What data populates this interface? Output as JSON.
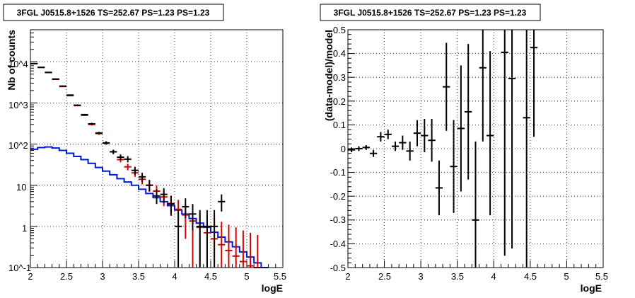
{
  "chart_data": [
    {
      "type": "histogram",
      "title": "3FGL J0515.8+1526 TS=252.67 PS=1.23 PS=1.23",
      "xlabel": "logE",
      "ylabel": "Nb of counts",
      "xlim": [
        2,
        5.5
      ],
      "ylim": [
        0.1,
        60000
      ],
      "yscale": "log",
      "grid": true,
      "x_ticks": [
        "2",
        "2.5",
        "3",
        "3.5",
        "4",
        "4.5",
        "5",
        "5.5"
      ],
      "y_ticks": [
        "10^-1",
        "1",
        "10",
        "10^2",
        "10^3",
        "10^4"
      ],
      "colors": {
        "data": "#000000",
        "model": "#d40000",
        "source": "#0019d4"
      },
      "series": [
        {
          "role": "data",
          "x": [
            2.05,
            2.15,
            2.25,
            2.35,
            2.45,
            2.55,
            2.65,
            2.75,
            2.85,
            2.95,
            3.05,
            3.15,
            3.25,
            3.35,
            3.45,
            3.55,
            3.65,
            3.75,
            3.85,
            3.95,
            4.05,
            4.15,
            4.25,
            4.35,
            4.45,
            4.55,
            4.65
          ],
          "y": [
            9000,
            7300,
            5500,
            3800,
            2560,
            1550,
            880,
            520,
            310,
            186,
            107,
            65,
            48,
            43,
            23,
            16,
            10,
            5.5,
            6,
            3.5,
            1,
            3,
            2,
            1,
            1,
            1,
            4
          ],
          "y_low": [
            8900,
            7200,
            5420,
            3740,
            2510,
            1510,
            850,
            500,
            290,
            175,
            98,
            57,
            41,
            36,
            18,
            12,
            7,
            3.5,
            3.7,
            1.9,
            0.1,
            1.6,
            0.8,
            0.1,
            0.1,
            0.1,
            2.3
          ],
          "y_high": [
            9100,
            7400,
            5580,
            3860,
            2610,
            1590,
            910,
            540,
            330,
            198,
            117,
            73,
            56,
            51,
            28,
            20,
            13.5,
            8,
            8.5,
            5.5,
            2.5,
            4.8,
            3.5,
            2.5,
            2.5,
            2.5,
            6
          ]
        },
        {
          "role": "model",
          "x": [
            2.05,
            2.15,
            2.25,
            2.35,
            2.45,
            2.55,
            2.65,
            2.75,
            2.85,
            2.95,
            3.05,
            3.15,
            3.25,
            3.35,
            3.45,
            3.55,
            3.65,
            3.75,
            3.85,
            3.95,
            4.05,
            4.15,
            4.25,
            4.35,
            4.45,
            4.55,
            4.65,
            4.75,
            4.85,
            4.95,
            5.05,
            5.15
          ],
          "y": [
            9000,
            7300,
            5500,
            3750,
            2500,
            1500,
            860,
            500,
            300,
            180,
            105,
            65,
            42,
            28,
            20,
            14,
            10,
            7.2,
            5.2,
            3.6,
            2.6,
            1.9,
            1.35,
            0.95,
            0.7,
            0.5,
            0.36,
            0.26,
            0.19,
            0.14,
            0.11,
            0.1
          ],
          "y_low": [
            8900,
            7200,
            5420,
            3690,
            2450,
            1460,
            830,
            480,
            283,
            168,
            96,
            58,
            36,
            23,
            16,
            10.5,
            7,
            4.6,
            3.1,
            1.8,
            1,
            0.5,
            0.1,
            0.1,
            0.1,
            0.1,
            0.1,
            0.1,
            0.1,
            0.1,
            0.1,
            0.1
          ],
          "y_high": [
            9100,
            7400,
            5580,
            3810,
            2550,
            1540,
            890,
            520,
            317,
            192,
            114,
            72,
            48,
            33,
            24,
            17.5,
            13,
            9.8,
            7.5,
            5.6,
            4.4,
            3.5,
            2.7,
            2.2,
            1.8,
            1.5,
            1.3,
            1.1,
            0.95,
            0.8,
            0.7,
            0.62
          ]
        },
        {
          "role": "source",
          "x": [
            2.05,
            2.15,
            2.25,
            2.35,
            2.45,
            2.55,
            2.65,
            2.75,
            2.85,
            2.95,
            3.05,
            3.15,
            3.25,
            3.35,
            3.45,
            3.55,
            3.65,
            3.75,
            3.85,
            3.95,
            4.05,
            4.15,
            4.25,
            4.35,
            4.45,
            4.55,
            4.65,
            4.75,
            4.85,
            4.95,
            5.05,
            5.15,
            5.25
          ],
          "y": [
            75,
            82,
            85,
            80,
            70,
            60,
            50,
            42,
            34,
            27,
            22,
            18,
            14.5,
            12,
            10,
            8,
            6.3,
            5,
            4,
            3.2,
            2.5,
            2,
            1.55,
            1.2,
            0.95,
            0.72,
            0.55,
            0.42,
            0.32,
            0.24,
            0.18,
            0.13,
            0.1
          ]
        }
      ]
    },
    {
      "type": "scatter",
      "title": "3FGL J0515.8+1526 TS=252.67 PS=1.23 PS=1.23",
      "xlabel": "logE",
      "ylabel": "(data-model)/model",
      "xlim": [
        2,
        5.5
      ],
      "ylim": [
        -0.5,
        0.5
      ],
      "grid": true,
      "x_ticks": [
        "2",
        "2.5",
        "3",
        "3.5",
        "4",
        "4.5",
        "5",
        "5.5"
      ],
      "y_ticks": [
        "-0.5",
        "-0.4",
        "-0.3",
        "-0.2",
        "-0.1",
        "0",
        "0.1",
        "0.2",
        "0.3",
        "0.4",
        "0.5"
      ],
      "colors": {
        "data": "#000000"
      },
      "series": [
        {
          "role": "data",
          "x": [
            2.05,
            2.15,
            2.25,
            2.35,
            2.45,
            2.55,
            2.65,
            2.75,
            2.85,
            2.95,
            3.05,
            3.15,
            3.25,
            3.35,
            3.45,
            3.55,
            3.65,
            3.75,
            3.85,
            3.95,
            4.15,
            4.25,
            4.45,
            4.55
          ],
          "y": [
            -0.005,
            0.0,
            0.005,
            -0.02,
            0.05,
            0.06,
            0.01,
            0.025,
            -0.01,
            0.065,
            0.055,
            0.035,
            -0.165,
            0.26,
            -0.075,
            0.085,
            0.155,
            -0.3,
            0.34,
            0.055,
            0.405,
            0.295,
            0.13,
            0.425
          ],
          "y_low": [
            -0.015,
            -0.01,
            -0.005,
            -0.035,
            0.03,
            0.04,
            -0.01,
            -0.005,
            -0.05,
            0.01,
            -0.015,
            -0.055,
            -0.28,
            0.075,
            -0.27,
            -0.18,
            -0.13,
            -0.5,
            0.03,
            -0.28,
            -0.45,
            -0.42,
            -0.5,
            0.05
          ],
          "y_high": [
            0.005,
            0.01,
            0.015,
            -0.005,
            0.07,
            0.08,
            0.03,
            0.055,
            0.03,
            0.12,
            0.125,
            0.125,
            -0.05,
            0.445,
            0.12,
            0.35,
            0.44,
            0.03,
            0.5,
            0.41,
            0.5,
            0.5,
            0.5,
            0.5
          ]
        }
      ]
    }
  ]
}
